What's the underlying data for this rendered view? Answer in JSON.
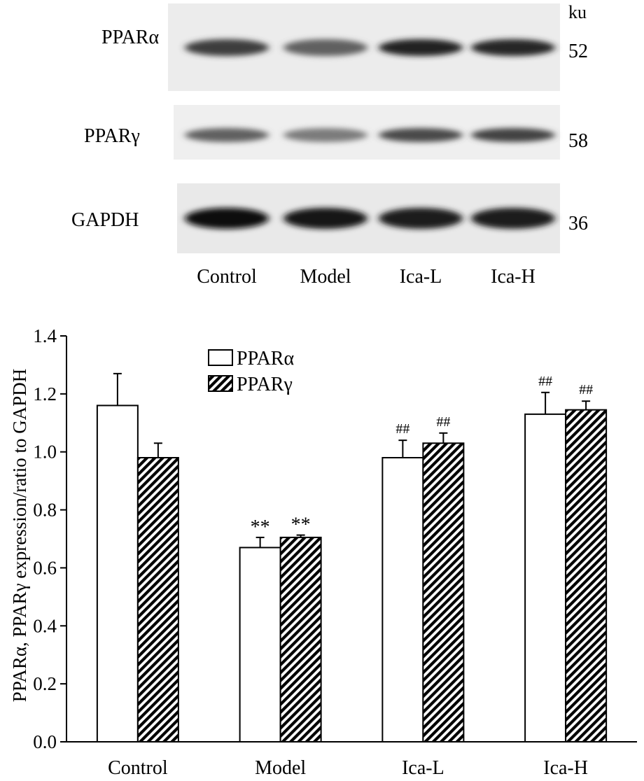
{
  "western_blot": {
    "unit_label": "ku",
    "lanes": [
      "Control",
      "Model",
      "Ica-L",
      "Ica-H"
    ],
    "rows": [
      {
        "protein": "PPARα",
        "mw": "52",
        "intensity": [
          0.78,
          0.62,
          0.9,
          0.88
        ]
      },
      {
        "protein": "PPARγ",
        "mw": "58",
        "intensity": [
          0.62,
          0.5,
          0.72,
          0.75
        ]
      },
      {
        "protein": "GAPDH",
        "mw": "36",
        "intensity": [
          1.0,
          0.95,
          0.92,
          0.92
        ]
      }
    ]
  },
  "chart_data": {
    "type": "bar",
    "categories": [
      "Control",
      "Model",
      "Ica-L",
      "Ica-H"
    ],
    "series": [
      {
        "name": "PPARα",
        "values": [
          1.16,
          0.67,
          0.98,
          1.13
        ],
        "errors": [
          0.11,
          0.035,
          0.06,
          0.075
        ],
        "annotations": [
          "",
          "**",
          "##",
          "##"
        ],
        "pattern": "open"
      },
      {
        "name": "PPARγ",
        "values": [
          0.98,
          0.705,
          1.03,
          1.145
        ],
        "errors": [
          0.05,
          0.008,
          0.035,
          0.03
        ],
        "annotations": [
          "",
          "**",
          "##",
          "##"
        ],
        "pattern": "hatched"
      }
    ],
    "ylabel": "PPARα, PPARγ expression/ratio to GAPDH",
    "ylim": [
      0.0,
      1.4
    ],
    "yticks": [
      "0.0",
      "0.2",
      "0.4",
      "0.6",
      "0.8",
      "1.0",
      "1.2",
      "1.4"
    ],
    "legend_position": "top-left",
    "grid": false
  }
}
